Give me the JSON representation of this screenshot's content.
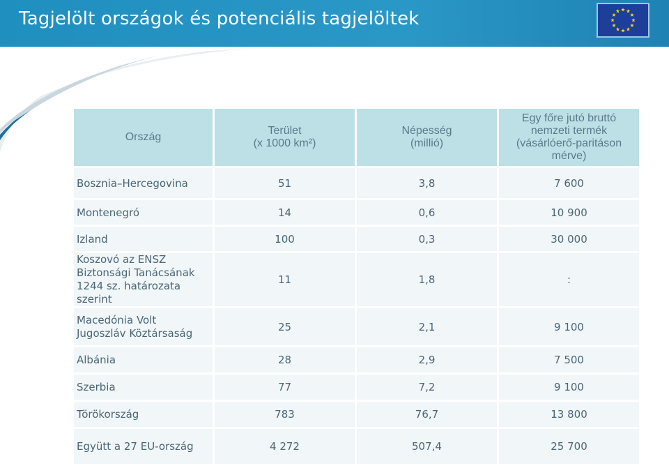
{
  "title": "Tagjelölt országok és potenciális tagjelöltek",
  "colors": {
    "header": "#2a98c7",
    "th_bg": "#bde0e6",
    "td_bg": "#f1f6f9",
    "text": "#4a6675",
    "flag": "#1d3f9a",
    "stars": "#f7d417"
  },
  "icons": {
    "flag": "eu-flag-icon"
  },
  "table": {
    "headers": [
      [
        "Ország"
      ],
      [
        "Terület",
        "(x 1000 km²)"
      ],
      [
        "Népesség",
        "(millió)"
      ],
      [
        "Egy főre jutó bruttó",
        "nemzeti termék",
        "(vásárlóerő-paritáson",
        "mérve)"
      ]
    ],
    "rows": [
      {
        "country": [
          "Bosznia–Hercegovina"
        ],
        "area": "51",
        "population": "3,8",
        "gni": "7 600"
      },
      {
        "country": [
          "Montenegró"
        ],
        "area": "14",
        "population": "0,6",
        "gni": "10 900"
      },
      {
        "country": [
          "Izland"
        ],
        "area": "100",
        "population": "0,3",
        "gni": "30 000"
      },
      {
        "country": [
          "Koszovó az ENSZ",
          "Biztonsági Tanácsának",
          "1244 sz. határozata",
          "szerint"
        ],
        "area": "11",
        "population": "1,8",
        "gni": ":"
      },
      {
        "country": [
          "Macedónia Volt",
          "Jugoszláv Köztársaság"
        ],
        "area": "25",
        "population": "2,1",
        "gni": "9 100"
      },
      {
        "country": [
          "Albánia"
        ],
        "area": "28",
        "population": "2,9",
        "gni": "7 500"
      },
      {
        "country": [
          "Szerbia"
        ],
        "area": "77",
        "population": "7,2",
        "gni": "9 100"
      },
      {
        "country": [
          "Törökország"
        ],
        "area": "783",
        "population": "76,7",
        "gni": "13 800"
      },
      {
        "country": [
          "Együtt a 27 EU-ország"
        ],
        "area": "4 272",
        "population": "507,4",
        "gni": "25 700"
      }
    ]
  }
}
